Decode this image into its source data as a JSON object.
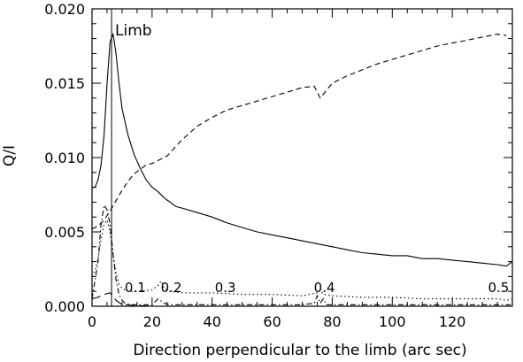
{
  "chart_data": {
    "type": "line",
    "title": "",
    "xlabel": "Direction perpendicular to the limb (arc sec)",
    "ylabel": "Q/I",
    "xlim": [
      0,
      140
    ],
    "ylim": [
      0,
      0.02
    ],
    "x_ticks": [
      "0",
      "20",
      "40",
      "60",
      "80",
      "100",
      "120"
    ],
    "y_ticks": [
      "0.000",
      "0.005",
      "0.010",
      "0.015",
      "0.020"
    ],
    "grid": false,
    "legend": "none",
    "limb_marker": {
      "x": 6.5,
      "label": "Limb"
    },
    "curve_labels": [
      {
        "text": "0.1",
        "x": 10,
        "y": 0.0006
      },
      {
        "text": "0.2",
        "x": 22,
        "y": 0.0006
      },
      {
        "text": "0.3",
        "x": 40,
        "y": 0.0006
      },
      {
        "text": "0.4",
        "x": 73,
        "y": 0.0006
      },
      {
        "text": "0.5",
        "x": 131,
        "y": 0.0006
      }
    ],
    "series": [
      {
        "style": "solid",
        "x": [
          0,
          1,
          2,
          3,
          4,
          5,
          6,
          7,
          8,
          9,
          10,
          12,
          14,
          16,
          18,
          20,
          22,
          24,
          26,
          28,
          30,
          35,
          40,
          45,
          50,
          55,
          60,
          65,
          70,
          75,
          80,
          85,
          90,
          95,
          100,
          105,
          110,
          115,
          120,
          125,
          130,
          135,
          138,
          140
        ],
        "y": [
          0.008,
          0.008,
          0.0085,
          0.0095,
          0.0115,
          0.015,
          0.0178,
          0.0183,
          0.017,
          0.015,
          0.0133,
          0.0115,
          0.0102,
          0.0093,
          0.0085,
          0.008,
          0.0077,
          0.0073,
          0.007,
          0.0067,
          0.0066,
          0.0063,
          0.006,
          0.0056,
          0.0053,
          0.005,
          0.0048,
          0.0046,
          0.0044,
          0.0042,
          0.004,
          0.0038,
          0.0036,
          0.0035,
          0.0034,
          0.0034,
          0.0032,
          0.0032,
          0.0031,
          0.003,
          0.0029,
          0.0028,
          0.0027,
          0.003
        ]
      },
      {
        "style": "dashed",
        "x": [
          0,
          2,
          4,
          6,
          8,
          10,
          12,
          14,
          16,
          18,
          20,
          25,
          30,
          35,
          40,
          45,
          50,
          55,
          60,
          65,
          70,
          74,
          76,
          78,
          80,
          85,
          90,
          95,
          100,
          105,
          110,
          115,
          120,
          125,
          130,
          135,
          138
        ],
        "y": [
          0.0052,
          0.0054,
          0.0058,
          0.0064,
          0.0071,
          0.0078,
          0.0084,
          0.0089,
          0.0092,
          0.0095,
          0.0096,
          0.0101,
          0.0112,
          0.0121,
          0.0127,
          0.0132,
          0.0135,
          0.0138,
          0.0141,
          0.0144,
          0.0147,
          0.0148,
          0.014,
          0.0145,
          0.015,
          0.0155,
          0.0159,
          0.0163,
          0.0166,
          0.0169,
          0.0172,
          0.0175,
          0.0177,
          0.0179,
          0.0181,
          0.0183,
          0.0182
        ]
      },
      {
        "style": "dotted",
        "x": [
          0,
          1,
          2,
          3,
          4,
          5,
          6,
          7,
          8,
          9,
          10,
          12,
          15,
          20,
          22,
          23,
          24,
          26,
          30,
          40,
          50,
          60,
          70,
          75,
          76,
          77,
          80,
          90,
          100,
          110,
          120,
          130,
          135,
          138,
          140
        ],
        "y": [
          0.002,
          0.0024,
          0.0032,
          0.0045,
          0.0055,
          0.0058,
          0.005,
          0.0035,
          0.0022,
          0.0015,
          0.0012,
          0.001,
          0.001,
          0.0011,
          0.0014,
          0.0017,
          0.0012,
          0.001,
          0.0009,
          0.0009,
          0.0008,
          0.0008,
          0.0007,
          0.0009,
          0.0011,
          0.0008,
          0.0007,
          0.0006,
          0.0006,
          0.0005,
          0.0005,
          0.0005,
          0.0005,
          0.0004,
          0.0005
        ]
      },
      {
        "style": "dashdot",
        "x": [
          0,
          2,
          3,
          4,
          5,
          6,
          7,
          8,
          9,
          10,
          11,
          13,
          16,
          20,
          22,
          24,
          26,
          30,
          40,
          50,
          60,
          70,
          74,
          75,
          76,
          77,
          78,
          80,
          90,
          100,
          110,
          120,
          130,
          138,
          140
        ],
        "y": [
          0.0005,
          0.003,
          0.0055,
          0.0068,
          0.0065,
          0.0055,
          0.0035,
          0.0018,
          0.0008,
          0.0004,
          0.0002,
          0.0001,
          0.0001,
          0.0001,
          0.0005,
          0.0002,
          0.0001,
          0.0001,
          0.0001,
          0.0001,
          0.0001,
          0.0001,
          0.0002,
          0.0007,
          0.0002,
          0.0005,
          0.0001,
          0.0001,
          0.0001,
          0.0001,
          0.0001,
          0.0001,
          0.0001,
          0.0001,
          0.0001
        ]
      },
      {
        "style": "longdash",
        "x": [
          0,
          2,
          4,
          6,
          8,
          10,
          20,
          30,
          40,
          60,
          80,
          100,
          120,
          140
        ],
        "y": [
          0.0005,
          0.0006,
          0.0008,
          0.0009,
          0.0004,
          0.0001,
          0.0,
          0.0,
          0.0,
          0.0,
          0.0,
          0.0,
          0.0,
          0.0
        ]
      }
    ]
  }
}
